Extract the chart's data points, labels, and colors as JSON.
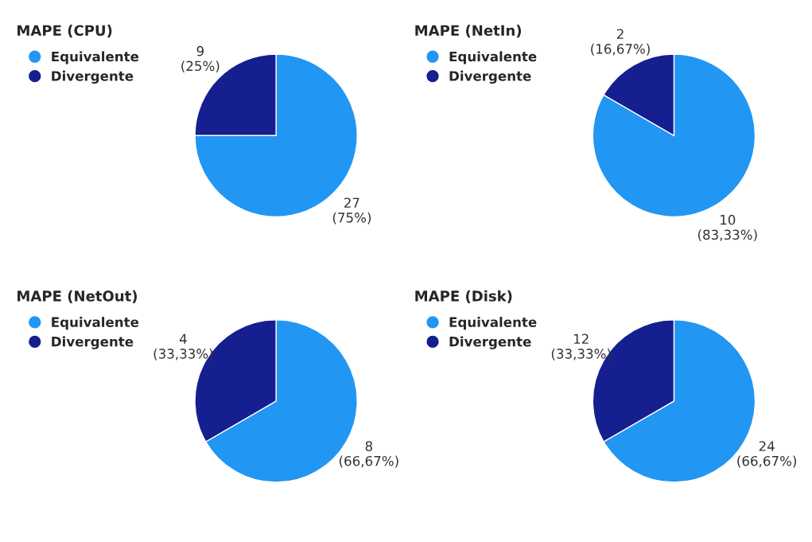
{
  "chart_data": [
    {
      "type": "pie",
      "title": "MAPE (CPU)",
      "categories": [
        "Equivalente",
        "Divergente"
      ],
      "values": [
        27,
        9
      ],
      "colors": [
        "#2196f3",
        "#151f8f"
      ],
      "value_labels": [
        "27\n(75%)",
        "9\n(25%)"
      ],
      "legend": "top left"
    },
    {
      "type": "pie",
      "title": "MAPE (NetIn)",
      "categories": [
        "Equivalente",
        "Divergente"
      ],
      "values": [
        10,
        2
      ],
      "colors": [
        "#2196f3",
        "#151f8f"
      ],
      "value_labels": [
        "10\n(83,33%)",
        "2\n(16,67%)"
      ],
      "legend": "top left"
    },
    {
      "type": "pie",
      "title": "MAPE (NetOut)",
      "categories": [
        "Equivalente",
        "Divergente"
      ],
      "values": [
        8,
        4
      ],
      "colors": [
        "#2196f3",
        "#151f8f"
      ],
      "value_labels": [
        "8\n(66,67%)",
        "4\n(33,33%)"
      ],
      "legend": "top left"
    },
    {
      "type": "pie",
      "title": "MAPE (Disk)",
      "categories": [
        "Equivalente",
        "Divergente"
      ],
      "values": [
        24,
        12
      ],
      "colors": [
        "#2196f3",
        "#151f8f"
      ],
      "value_labels": [
        "24\n(66,67%)",
        "12\n(33,33%)"
      ],
      "legend": "top left"
    }
  ]
}
